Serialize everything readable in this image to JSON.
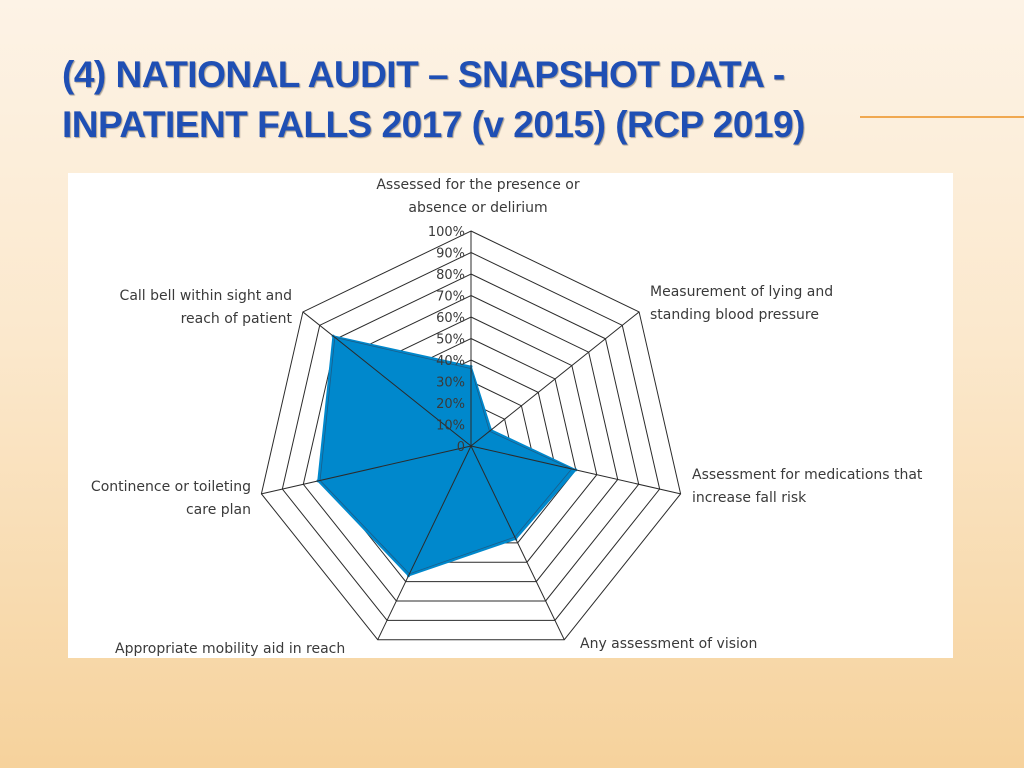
{
  "slide": {
    "title_line1": "(4) NATIONAL AUDIT – SNAPSHOT DATA  -",
    "title_line2": "INPATIENT FALLS 2017 (v 2015) (RCP 2019)",
    "title_color": "#1f4fb4",
    "accent_color": "#f0a850"
  },
  "chart_data": {
    "type": "radar",
    "title": "",
    "categories": [
      "Assessed for the presence or absence or delirium",
      "Measurement of lying and standing blood pressure",
      "Assessment for medications that increase fall risk",
      "Any assessment of vision",
      "Appropriate mobility aid in reach",
      "Continence or toileting care plan",
      "Call bell within sight and reach of patient"
    ],
    "category_labels": [
      [
        "Assessed for the presence or",
        "absence or delirium"
      ],
      [
        "Measurement of lying and",
        "standing blood pressure"
      ],
      [
        "Assessment for medications that",
        "increase fall risk"
      ],
      [
        "Any assessment of vision"
      ],
      [
        "Appropriate mobility aid in reach"
      ],
      [
        "Continence or toileting",
        "care plan"
      ],
      [
        "Call bell within sight and",
        "reach of patient"
      ]
    ],
    "series": [
      {
        "values": [
          37,
          12,
          50,
          48,
          67,
          73,
          82
        ],
        "color": "#0088cc"
      }
    ],
    "series_2015_outline": [
      36,
      11,
      48,
      47,
      66,
      72,
      81
    ],
    "rlim": [
      0,
      100
    ],
    "rticks": [
      0,
      10,
      20,
      30,
      40,
      50,
      60,
      70,
      80,
      90,
      100
    ],
    "rtick_labels": [
      "0",
      "10%",
      "20%",
      "30%",
      "40%",
      "50%",
      "60%",
      "70%",
      "80%",
      "90%",
      "100%"
    ],
    "grid": true
  }
}
